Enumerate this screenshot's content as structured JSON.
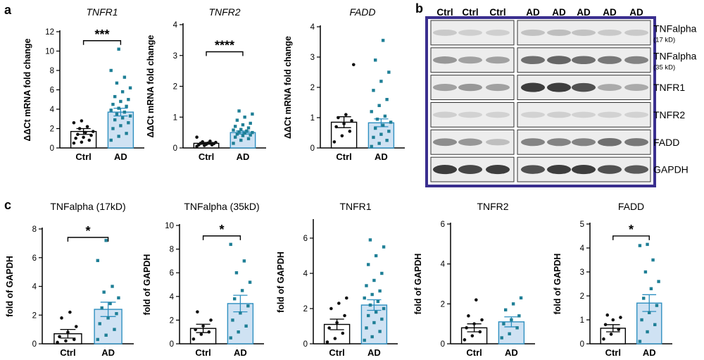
{
  "panel_labels": {
    "a": "a",
    "b": "b",
    "c": "c"
  },
  "colors": {
    "ctrl_fill": "#ffffff",
    "ad_fill": "#cfe2f3",
    "ad_edge": "#2e8fc0",
    "ad_points": "#1f7f96",
    "ctrl_points": "#111111",
    "blot_frame": "#3a2f8f"
  },
  "chart_data": [
    {
      "id": "tnfr1-mrna",
      "type": "bar",
      "title": "TNFR1",
      "title_italic": true,
      "ylabel": "ΔΔCt mRNA fold change",
      "ylim": [
        0,
        12
      ],
      "yticks": [
        0,
        2,
        4,
        6,
        8,
        10,
        12
      ],
      "categories": [
        "Ctrl",
        "AD"
      ],
      "values": [
        1.7,
        3.7
      ],
      "errors": [
        0.3,
        0.4
      ],
      "significance": "***",
      "points": [
        [
          0.5,
          0.6,
          0.8,
          1.0,
          1.1,
          1.3,
          1.4,
          1.6,
          1.7,
          2.0,
          2.2,
          2.6,
          2.8
        ],
        [
          0.8,
          1.2,
          1.5,
          2.0,
          2.3,
          2.6,
          2.9,
          3.1,
          3.3,
          3.5,
          3.7,
          3.9,
          4.1,
          4.3,
          4.5,
          4.8,
          5.0,
          5.3,
          5.8,
          6.2,
          6.7,
          7.3,
          8.0,
          10.2
        ]
      ]
    },
    {
      "id": "tnfr2-mrna",
      "type": "bar",
      "title": "TNFR2",
      "title_italic": true,
      "ylabel": "ΔΔCt mRNA fold change",
      "ylim": [
        0,
        4
      ],
      "yticks": [
        0,
        1,
        2,
        3,
        4
      ],
      "categories": [
        "Ctrl",
        "AD"
      ],
      "values": [
        0.15,
        0.5
      ],
      "errors": [
        0.03,
        0.05
      ],
      "significance": "****",
      "points": [
        [
          0.05,
          0.08,
          0.1,
          0.1,
          0.12,
          0.14,
          0.15,
          0.16,
          0.18,
          0.2,
          0.22,
          0.35
        ],
        [
          0.15,
          0.25,
          0.3,
          0.35,
          0.4,
          0.42,
          0.45,
          0.48,
          0.5,
          0.52,
          0.55,
          0.58,
          0.6,
          0.65,
          0.7,
          0.75,
          0.8,
          0.9,
          1.0,
          1.1,
          1.2
        ]
      ]
    },
    {
      "id": "fadd-mrna",
      "type": "bar",
      "title": "FADD",
      "title_italic": true,
      "ylabel": "ΔΔCt mRNA fold change",
      "ylim": [
        0,
        4
      ],
      "yticks": [
        0,
        1,
        2,
        3,
        4
      ],
      "categories": [
        "Ctrl",
        "AD"
      ],
      "values": [
        0.85,
        0.83
      ],
      "errors": [
        0.18,
        0.13
      ],
      "significance": "",
      "points": [
        [
          0.2,
          0.4,
          0.55,
          0.7,
          0.8,
          0.9,
          1.0,
          1.1,
          2.75
        ],
        [
          0.05,
          0.15,
          0.25,
          0.35,
          0.45,
          0.55,
          0.65,
          0.75,
          0.85,
          0.95,
          1.05,
          1.2,
          1.4,
          1.6,
          1.9,
          2.2,
          2.5,
          2.9,
          3.55
        ]
      ]
    },
    {
      "id": "tnfa17-protein",
      "type": "bar",
      "title": "TNFalpha (17kD)",
      "title_italic": false,
      "ylabel": "fold of GAPDH",
      "ylim": [
        0,
        8
      ],
      "yticks": [
        0,
        2,
        4,
        6,
        8
      ],
      "categories": [
        "Ctrl",
        "AD"
      ],
      "values": [
        0.7,
        2.4
      ],
      "errors": [
        0.3,
        0.5
      ],
      "significance": "*",
      "points": [
        [
          0.1,
          0.2,
          0.3,
          0.5,
          0.8,
          1.2,
          1.8,
          2.2
        ],
        [
          0.3,
          0.6,
          1.0,
          1.4,
          1.8,
          2.1,
          2.5,
          2.8,
          3.2,
          3.6,
          4.0,
          5.8,
          7.2
        ]
      ]
    },
    {
      "id": "tnfa35-protein",
      "type": "bar",
      "title": "TNFalpha (35kD)",
      "title_italic": false,
      "ylabel": "fold of GAPDH",
      "ylim": [
        0,
        10
      ],
      "yticks": [
        0,
        2,
        4,
        6,
        8,
        10
      ],
      "categories": [
        "Ctrl",
        "AD"
      ],
      "values": [
        1.3,
        3.4
      ],
      "errors": [
        0.35,
        0.7
      ],
      "significance": "*",
      "points": [
        [
          0.4,
          0.8,
          1.0,
          1.2,
          1.5,
          2.0,
          2.7
        ],
        [
          0.5,
          1.0,
          1.5,
          2.0,
          2.6,
          3.2,
          3.8,
          4.5,
          5.2,
          6.0,
          7.0,
          8.4
        ]
      ]
    },
    {
      "id": "tnfr1-protein",
      "type": "bar",
      "title": "TNFR1",
      "title_italic": false,
      "ylabel": "fold of GAPDH",
      "ylim": [
        0,
        7
      ],
      "yticks": [
        0,
        2,
        4,
        6
      ],
      "categories": [
        "Ctrl",
        "AD"
      ],
      "values": [
        1.1,
        2.2
      ],
      "errors": [
        0.3,
        0.3
      ],
      "significance": "",
      "points": [
        [
          0.1,
          0.3,
          0.6,
          0.9,
          1.2,
          1.6,
          2.0,
          2.3,
          2.6
        ],
        [
          0.2,
          0.4,
          0.7,
          0.9,
          1.2,
          1.4,
          1.6,
          1.8,
          2.0,
          2.2,
          2.4,
          2.6,
          2.8,
          3.0,
          3.3,
          3.6,
          4.0,
          4.5,
          5.0,
          5.5,
          5.9
        ]
      ]
    },
    {
      "id": "tnfr2-protein",
      "type": "bar",
      "title": "TNFR2",
      "title_italic": false,
      "ylabel": "fold of GAPDH",
      "ylim": [
        0,
        6
      ],
      "yticks": [
        0,
        2,
        4,
        6
      ],
      "categories": [
        "Ctrl",
        "AD"
      ],
      "values": [
        0.8,
        1.1
      ],
      "errors": [
        0.2,
        0.25
      ],
      "significance": "",
      "points": [
        [
          0.2,
          0.4,
          0.6,
          0.8,
          1.0,
          1.2,
          1.4,
          2.2
        ],
        [
          0.3,
          0.5,
          0.8,
          1.0,
          1.2,
          1.4,
          1.7,
          2.0,
          2.3
        ]
      ]
    },
    {
      "id": "fadd-protein",
      "type": "bar",
      "title": "FADD",
      "title_italic": false,
      "ylabel": "fold of GAPDH",
      "ylim": [
        0,
        5
      ],
      "yticks": [
        0,
        1,
        2,
        3,
        4,
        5
      ],
      "categories": [
        "Ctrl",
        "AD"
      ],
      "values": [
        0.65,
        1.7
      ],
      "errors": [
        0.15,
        0.35
      ],
      "significance": "*",
      "points": [
        [
          0.2,
          0.4,
          0.6,
          0.8,
          1.0,
          1.1,
          1.2
        ],
        [
          0.1,
          0.5,
          0.8,
          1.0,
          1.3,
          1.6,
          1.9,
          2.3,
          2.6,
          3.0,
          3.5,
          4.1,
          4.15
        ]
      ]
    }
  ],
  "blot": {
    "lanes": [
      "Ctrl",
      "Ctrl",
      "Ctrl",
      "AD",
      "AD",
      "AD",
      "AD",
      "AD"
    ],
    "rows": [
      {
        "label": "TNFalpha",
        "sublabel": "(17 kD)",
        "intensity": [
          0.15,
          0.12,
          0.12,
          0.18,
          0.2,
          0.18,
          0.15,
          0.15
        ]
      },
      {
        "label": "TNFalpha",
        "sublabel": "(35 kD)",
        "intensity": [
          0.4,
          0.35,
          0.35,
          0.6,
          0.65,
          0.6,
          0.55,
          0.5
        ]
      },
      {
        "label": "TNFR1",
        "sublabel": "",
        "intensity": [
          0.35,
          0.4,
          0.35,
          0.85,
          0.85,
          0.75,
          0.3,
          0.3
        ]
      },
      {
        "label": "TNFR2",
        "sublabel": "",
        "intensity": [
          0.12,
          0.1,
          0.1,
          0.1,
          0.12,
          0.1,
          0.1,
          0.1
        ]
      },
      {
        "label": "FADD",
        "sublabel": "",
        "intensity": [
          0.45,
          0.4,
          0.2,
          0.5,
          0.5,
          0.5,
          0.6,
          0.55
        ]
      },
      {
        "label": "GAPDH",
        "sublabel": "",
        "intensity": [
          0.85,
          0.8,
          0.85,
          0.75,
          0.85,
          0.85,
          0.75,
          0.7
        ]
      }
    ]
  }
}
